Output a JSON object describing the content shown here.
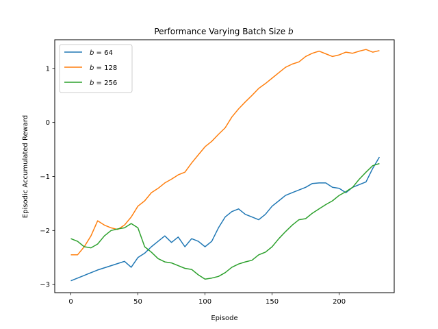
{
  "chart_data": {
    "type": "line",
    "title": "Performance Varying Batch Size",
    "title_italic_suffix": "b",
    "xlabel": "Episode",
    "ylabel": "Episodic Accumulated Reward",
    "xlim": [
      -12,
      241
    ],
    "ylim": [
      -3.15,
      1.53
    ],
    "xticks": [
      0,
      50,
      100,
      150,
      200
    ],
    "yticks": [
      -3,
      -2,
      -1,
      0,
      1
    ],
    "legend_position": "upper-left",
    "grid": false,
    "series": [
      {
        "name_var": "b",
        "name_rest": " = 64",
        "color": "#1f77b4",
        "x": [
          0,
          10,
          20,
          30,
          40,
          45,
          50,
          55,
          60,
          65,
          70,
          75,
          80,
          85,
          90,
          95,
          100,
          105,
          110,
          115,
          120,
          125,
          130,
          135,
          140,
          145,
          150,
          155,
          160,
          165,
          170,
          175,
          180,
          185,
          190,
          195,
          200,
          205,
          210,
          215,
          220,
          225,
          230
        ],
        "y": [
          -2.93,
          -2.83,
          -2.73,
          -2.65,
          -2.57,
          -2.68,
          -2.5,
          -2.42,
          -2.3,
          -2.2,
          -2.1,
          -2.22,
          -2.12,
          -2.3,
          -2.15,
          -2.2,
          -2.3,
          -2.2,
          -1.95,
          -1.75,
          -1.65,
          -1.6,
          -1.7,
          -1.75,
          -1.8,
          -1.7,
          -1.55,
          -1.45,
          -1.35,
          -1.3,
          -1.25,
          -1.2,
          -1.13,
          -1.12,
          -1.12,
          -1.2,
          -1.22,
          -1.3,
          -1.2,
          -1.15,
          -1.1,
          -0.85,
          -0.64
        ]
      },
      {
        "name_var": "b",
        "name_rest": " = 128",
        "color": "#ff7f0e",
        "x": [
          0,
          5,
          10,
          15,
          20,
          25,
          30,
          35,
          40,
          45,
          50,
          55,
          60,
          65,
          70,
          75,
          80,
          85,
          90,
          95,
          100,
          105,
          110,
          115,
          120,
          125,
          130,
          135,
          140,
          145,
          150,
          155,
          160,
          165,
          170,
          175,
          180,
          185,
          190,
          195,
          200,
          205,
          210,
          215,
          220,
          225,
          230
        ],
        "y": [
          -2.45,
          -2.45,
          -2.3,
          -2.1,
          -1.82,
          -1.9,
          -1.95,
          -1.98,
          -1.9,
          -1.75,
          -1.55,
          -1.45,
          -1.3,
          -1.22,
          -1.12,
          -1.05,
          -0.97,
          -0.92,
          -0.75,
          -0.6,
          -0.45,
          -0.35,
          -0.22,
          -0.1,
          0.1,
          0.25,
          0.38,
          0.5,
          0.63,
          0.72,
          0.82,
          0.92,
          1.02,
          1.08,
          1.12,
          1.22,
          1.28,
          1.32,
          1.27,
          1.22,
          1.25,
          1.3,
          1.28,
          1.32,
          1.35,
          1.3,
          1.33
        ]
      },
      {
        "name_var": "b",
        "name_rest": " = 256",
        "color": "#2ca02c",
        "x": [
          0,
          5,
          10,
          15,
          20,
          25,
          30,
          35,
          40,
          45,
          50,
          55,
          60,
          65,
          70,
          75,
          80,
          85,
          90,
          95,
          100,
          105,
          110,
          115,
          120,
          125,
          130,
          135,
          140,
          145,
          150,
          155,
          160,
          165,
          170,
          175,
          180,
          185,
          190,
          195,
          200,
          205,
          210,
          215,
          220,
          225,
          230
        ],
        "y": [
          -2.15,
          -2.2,
          -2.3,
          -2.32,
          -2.25,
          -2.1,
          -2.0,
          -1.97,
          -1.95,
          -1.87,
          -1.95,
          -2.3,
          -2.4,
          -2.52,
          -2.58,
          -2.6,
          -2.65,
          -2.7,
          -2.72,
          -2.82,
          -2.9,
          -2.88,
          -2.85,
          -2.78,
          -2.68,
          -2.62,
          -2.58,
          -2.55,
          -2.45,
          -2.4,
          -2.3,
          -2.15,
          -2.02,
          -1.9,
          -1.8,
          -1.78,
          -1.68,
          -1.6,
          -1.52,
          -1.45,
          -1.35,
          -1.28,
          -1.2,
          -1.05,
          -0.92,
          -0.8,
          -0.76
        ]
      }
    ]
  }
}
